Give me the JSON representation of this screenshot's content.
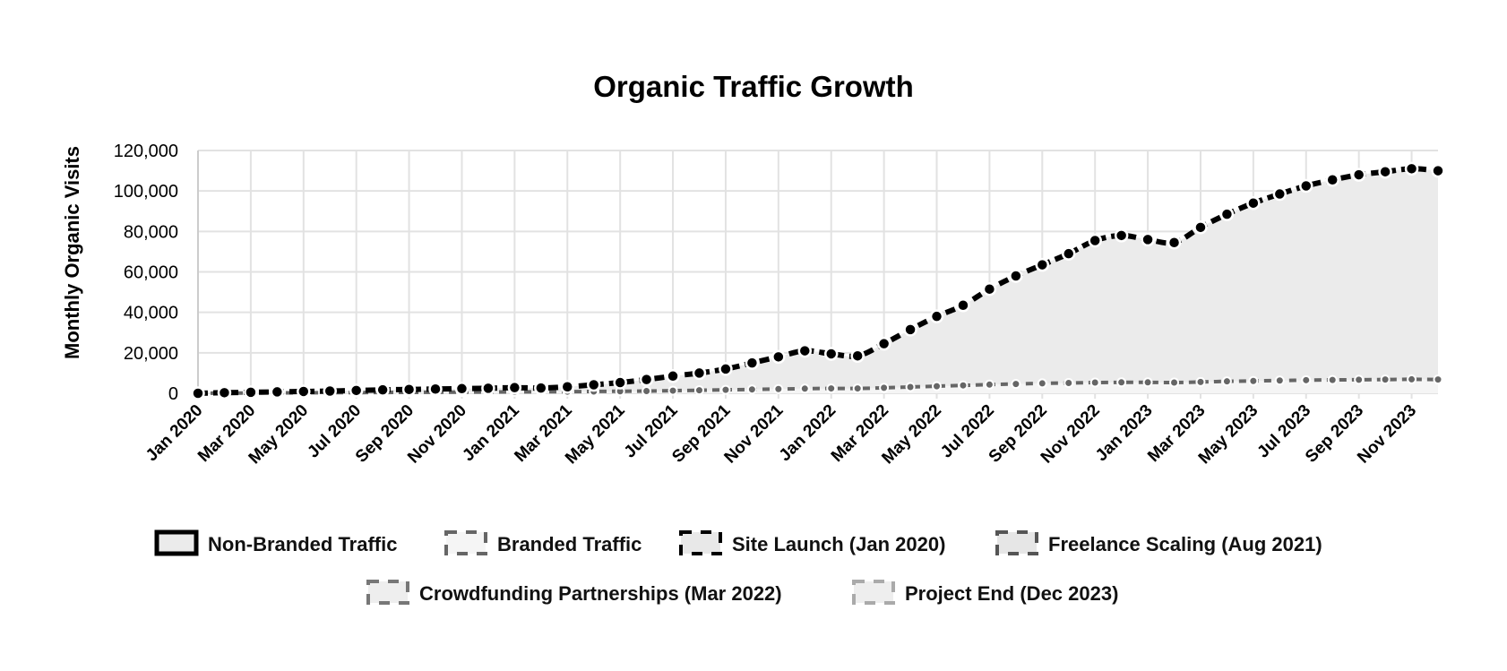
{
  "chart_data": {
    "type": "area",
    "title": "Organic Traffic Growth",
    "xlabel": "",
    "ylabel": "Monthly Organic Visits",
    "ylim": [
      0,
      120000
    ],
    "yticks": [
      "0",
      "20,000",
      "40,000",
      "60,000",
      "80,000",
      "100,000",
      "120,000"
    ],
    "ytick_values": [
      0,
      20000,
      40000,
      60000,
      80000,
      100000,
      120000
    ],
    "grid": true,
    "legend_placement": "bottom",
    "x": [
      "Jan 2020",
      "Feb 2020",
      "Mar 2020",
      "Apr 2020",
      "May 2020",
      "Jun 2020",
      "Jul 2020",
      "Aug 2020",
      "Sep 2020",
      "Oct 2020",
      "Nov 2020",
      "Dec 2020",
      "Jan 2021",
      "Feb 2021",
      "Mar 2021",
      "Apr 2021",
      "May 2021",
      "Jun 2021",
      "Jul 2021",
      "Aug 2021",
      "Sep 2021",
      "Oct 2021",
      "Nov 2021",
      "Dec 2021",
      "Jan 2022",
      "Feb 2022",
      "Mar 2022",
      "Apr 2022",
      "May 2022",
      "Jun 2022",
      "Jul 2022",
      "Aug 2022",
      "Sep 2022",
      "Oct 2022",
      "Nov 2022",
      "Dec 2022",
      "Jan 2023",
      "Feb 2023",
      "Mar 2023",
      "Apr 2023",
      "May 2023",
      "Jun 2023",
      "Jul 2023",
      "Aug 2023",
      "Sep 2023",
      "Oct 2023",
      "Nov 2023",
      "Dec 2023"
    ],
    "xtick_labels": [
      "Jan 2020",
      "Mar 2020",
      "May 2020",
      "Jul 2020",
      "Sep 2020",
      "Nov 2020",
      "Jan 2021",
      "Mar 2021",
      "May 2021",
      "Jul 2021",
      "Sep 2021",
      "Nov 2021",
      "Jan 2022",
      "Mar 2022",
      "May 2022",
      "Jul 2022",
      "Sep 2022",
      "Nov 2022",
      "Jan 2023",
      "Mar 2023",
      "May 2023",
      "Jul 2023",
      "Sep 2023",
      "Nov 2023"
    ],
    "series": [
      {
        "name": "Non-Branded Traffic",
        "color": "#000000",
        "fill": "#ebebeb",
        "values": [
          0,
          300,
          500,
          700,
          900,
          1100,
          1400,
          1700,
          1900,
          2100,
          2300,
          2500,
          2800,
          2600,
          3200,
          4200,
          5300,
          6800,
          8500,
          10000,
          12000,
          15000,
          18000,
          21000,
          19500,
          18500,
          24500,
          31500,
          38000,
          43500,
          51500,
          58000,
          63500,
          69000,
          75500,
          78000,
          76000,
          74500,
          82000,
          88500,
          94000,
          98500,
          102500,
          105500,
          108000,
          109500,
          111000,
          110000
        ]
      },
      {
        "name": "Branded Traffic",
        "color": "#666666",
        "fill": "#f5f5f5",
        "values": [
          0,
          100,
          150,
          200,
          250,
          300,
          350,
          400,
          450,
          500,
          600,
          650,
          700,
          750,
          800,
          900,
          1000,
          1100,
          1300,
          1500,
          1700,
          1900,
          2100,
          2300,
          2400,
          2400,
          2700,
          3100,
          3500,
          3900,
          4300,
          4600,
          4900,
          5100,
          5300,
          5400,
          5400,
          5300,
          5600,
          5900,
          6100,
          6300,
          6500,
          6600,
          6700,
          6800,
          6900,
          6800
        ]
      }
    ],
    "legend": [
      {
        "label": "Non-Branded Traffic",
        "border": "#000000",
        "fill": "#ebebeb",
        "style": "solid"
      },
      {
        "label": "Branded Traffic",
        "border": "#666666",
        "fill": "#f5f5f5",
        "style": "dashed"
      },
      {
        "label": "Site Launch (Jan 2020)",
        "border": "#000000",
        "fill": "#e8e8e8",
        "style": "dashed"
      },
      {
        "label": "Freelance Scaling (Aug 2021)",
        "border": "#555555",
        "fill": "#e6e6e6",
        "style": "dashed"
      },
      {
        "label": "Crowdfunding Partnerships (Mar 2022)",
        "border": "#777777",
        "fill": "#eeeeee",
        "style": "dashed"
      },
      {
        "label": "Project End (Dec 2023)",
        "border": "#aaaaaa",
        "fill": "#eeeeee",
        "style": "dashed"
      }
    ]
  }
}
